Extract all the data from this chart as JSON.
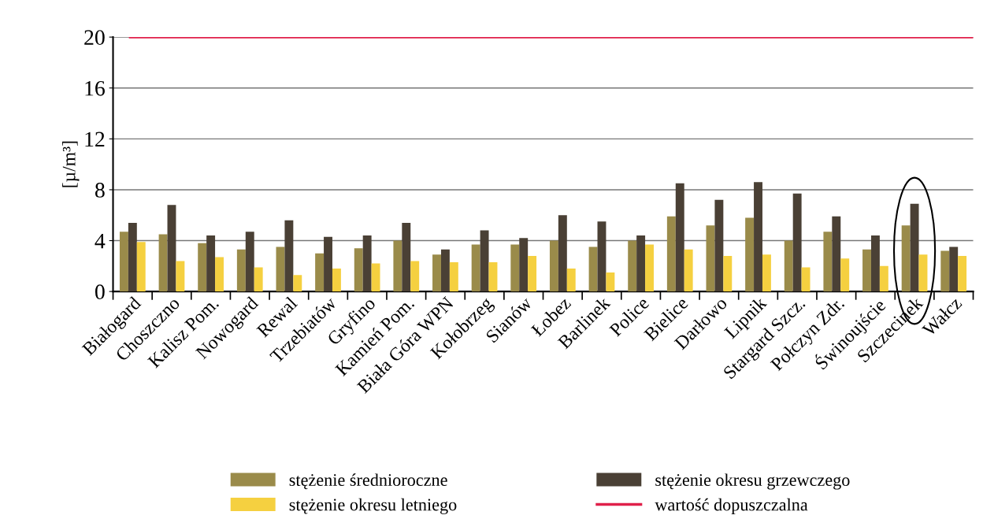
{
  "chart_data": {
    "type": "bar",
    "ylabel": "[µ/m³]",
    "categories": [
      "Białogard",
      "Choszczno",
      "Kalisz Pom.",
      "Nowogard",
      "Rewal",
      "Trzebiatów",
      "Gryfino",
      "Kamień Pom.",
      "Biała Góra WPN",
      "Kołobrzeg",
      "Sianów",
      "Łobez",
      "Barlinek",
      "Police",
      "Bielice",
      "Darłowo",
      "Lipnik",
      "Stargard Szcz.",
      "Połczyn Zdr.",
      "Świnoujście",
      "Szczecinek",
      "Wałcz"
    ],
    "series": [
      {
        "name": "stężenie średnioroczne",
        "color": "#9a8b4a",
        "values": [
          4.7,
          4.5,
          3.8,
          3.3,
          3.5,
          3.0,
          3.4,
          4.0,
          2.9,
          3.7,
          3.7,
          4.0,
          3.5,
          4.0,
          5.9,
          5.2,
          5.8,
          4.0,
          4.7,
          3.3,
          5.2,
          3.2
        ]
      },
      {
        "name": "stężenie okresu grzewczego",
        "color": "#4a4035",
        "values": [
          5.4,
          6.8,
          4.4,
          4.7,
          5.6,
          4.3,
          4.4,
          5.4,
          3.3,
          4.8,
          4.2,
          6.0,
          5.5,
          4.4,
          8.5,
          7.2,
          8.6,
          7.7,
          5.9,
          4.4,
          6.9,
          3.5
        ]
      },
      {
        "name": "stężenie okresu letniego",
        "color": "#f5d040",
        "values": [
          3.9,
          2.4,
          2.7,
          1.9,
          1.3,
          1.8,
          2.2,
          2.4,
          2.3,
          2.3,
          2.8,
          1.8,
          1.5,
          3.7,
          3.3,
          2.8,
          2.9,
          1.9,
          2.6,
          2.0,
          2.9,
          2.8
        ]
      }
    ],
    "ref_lines": [
      {
        "axis": "y",
        "value": 20,
        "label": "wartość dopuszczalna",
        "color": "#e0204a"
      }
    ],
    "ylim": [
      0,
      20
    ],
    "yticks": [
      0,
      4,
      8,
      12,
      16,
      20
    ],
    "grid": "y",
    "legend": "bottom"
  }
}
